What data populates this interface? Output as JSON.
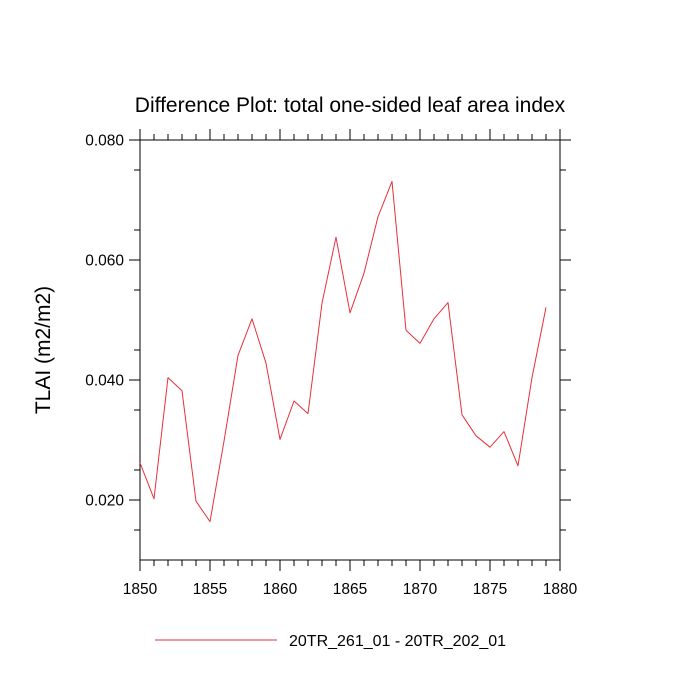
{
  "chart_data": {
    "type": "line",
    "title": "Difference Plot: total one-sided leaf area index",
    "xlabel": "",
    "ylabel": "TLAI  (m2/m2)",
    "xlim": [
      1850,
      1880
    ],
    "ylim": [
      0.01,
      0.08
    ],
    "x_major_ticks": [
      1850,
      1855,
      1860,
      1865,
      1870,
      1875,
      1880
    ],
    "x_tick_labels": [
      "1850",
      "1855",
      "1860",
      "1865",
      "1870",
      "1875",
      "1880"
    ],
    "y_major_ticks": [
      0.02,
      0.04,
      0.06,
      0.08
    ],
    "y_tick_labels": [
      "0.020",
      "0.040",
      "0.060",
      "0.080"
    ],
    "grid": false,
    "legend_placement": "bottom",
    "series": [
      {
        "name": "20TR_261_01 - 20TR_202_01",
        "color": "#e8303a",
        "x": [
          1850,
          1851,
          1852,
          1853,
          1854,
          1855,
          1856,
          1857,
          1858,
          1859,
          1860,
          1861,
          1862,
          1863,
          1864,
          1865,
          1866,
          1867,
          1868,
          1869,
          1870,
          1871,
          1872,
          1873,
          1874,
          1875,
          1876,
          1877,
          1878,
          1879
        ],
        "values": [
          0.0262,
          0.0202,
          0.0404,
          0.0382,
          0.0198,
          0.0164,
          0.0298,
          0.0441,
          0.0502,
          0.0428,
          0.0301,
          0.0365,
          0.0344,
          0.0528,
          0.0638,
          0.0512,
          0.0578,
          0.0672,
          0.0731,
          0.0483,
          0.0461,
          0.0502,
          0.0529,
          0.0342,
          0.0307,
          0.0288,
          0.0314,
          0.0257,
          0.0404,
          0.0521
        ]
      }
    ]
  }
}
